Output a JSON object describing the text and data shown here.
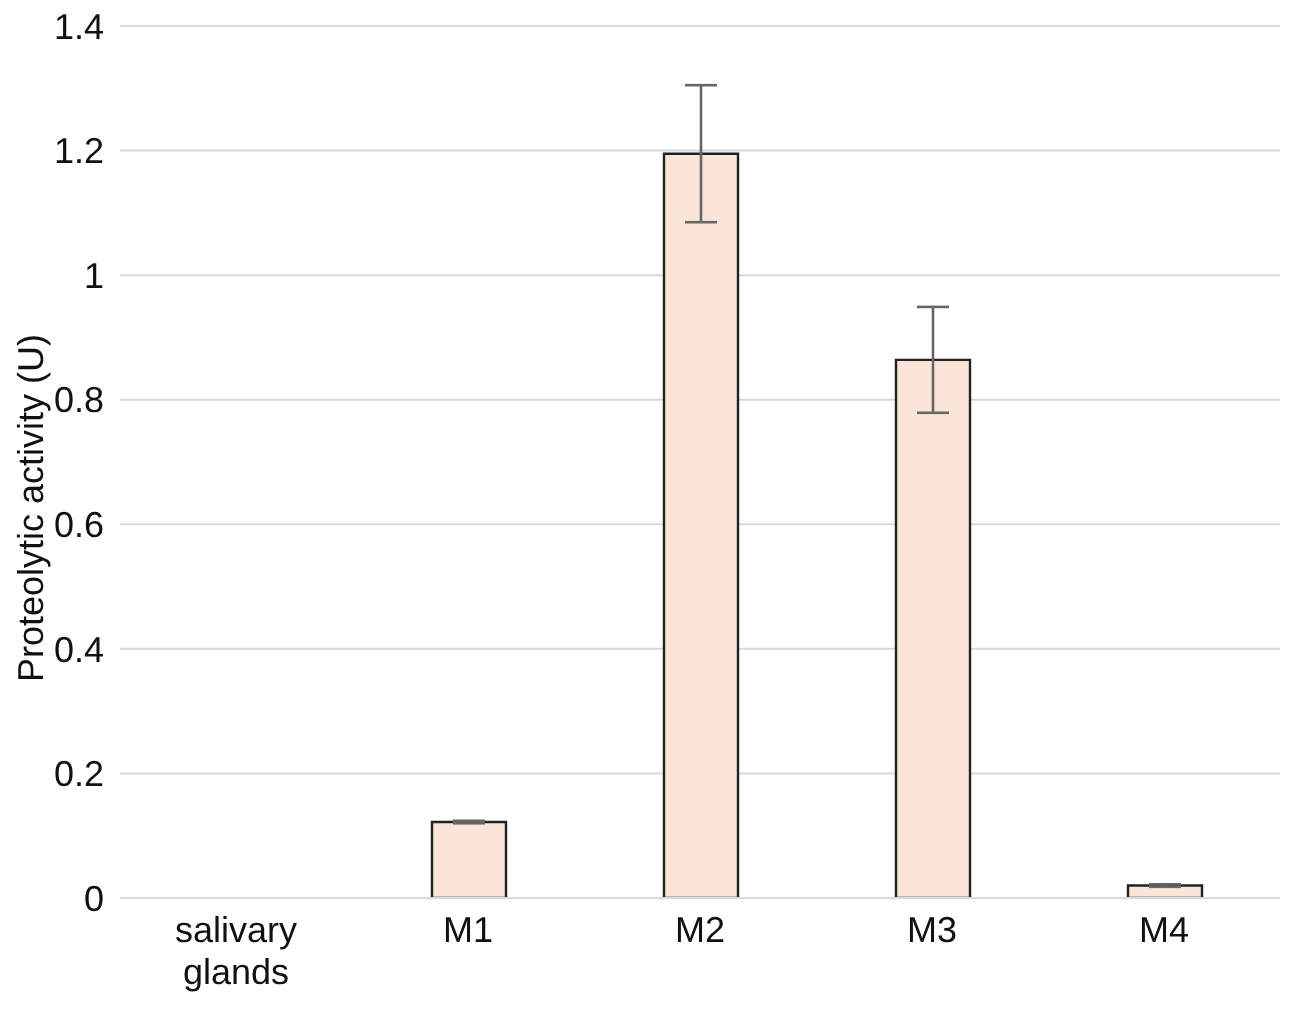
{
  "chart_data": {
    "type": "bar",
    "ylabel": "Proteolytic activity (U)",
    "categories": [
      "salivary glands",
      "M1",
      "M2",
      "M3",
      "M4"
    ],
    "values": [
      0,
      0.122,
      1.195,
      0.864,
      0.02
    ],
    "errors": [
      null,
      0.002,
      0.11,
      0.085,
      0.002
    ],
    "color": "#fae5d8",
    "ylim": [
      0,
      1.4
    ],
    "yticks": [
      0,
      0.2,
      0.4,
      0.6,
      0.8,
      1,
      1.2,
      1.4
    ],
    "grid": "y",
    "legend": false
  }
}
